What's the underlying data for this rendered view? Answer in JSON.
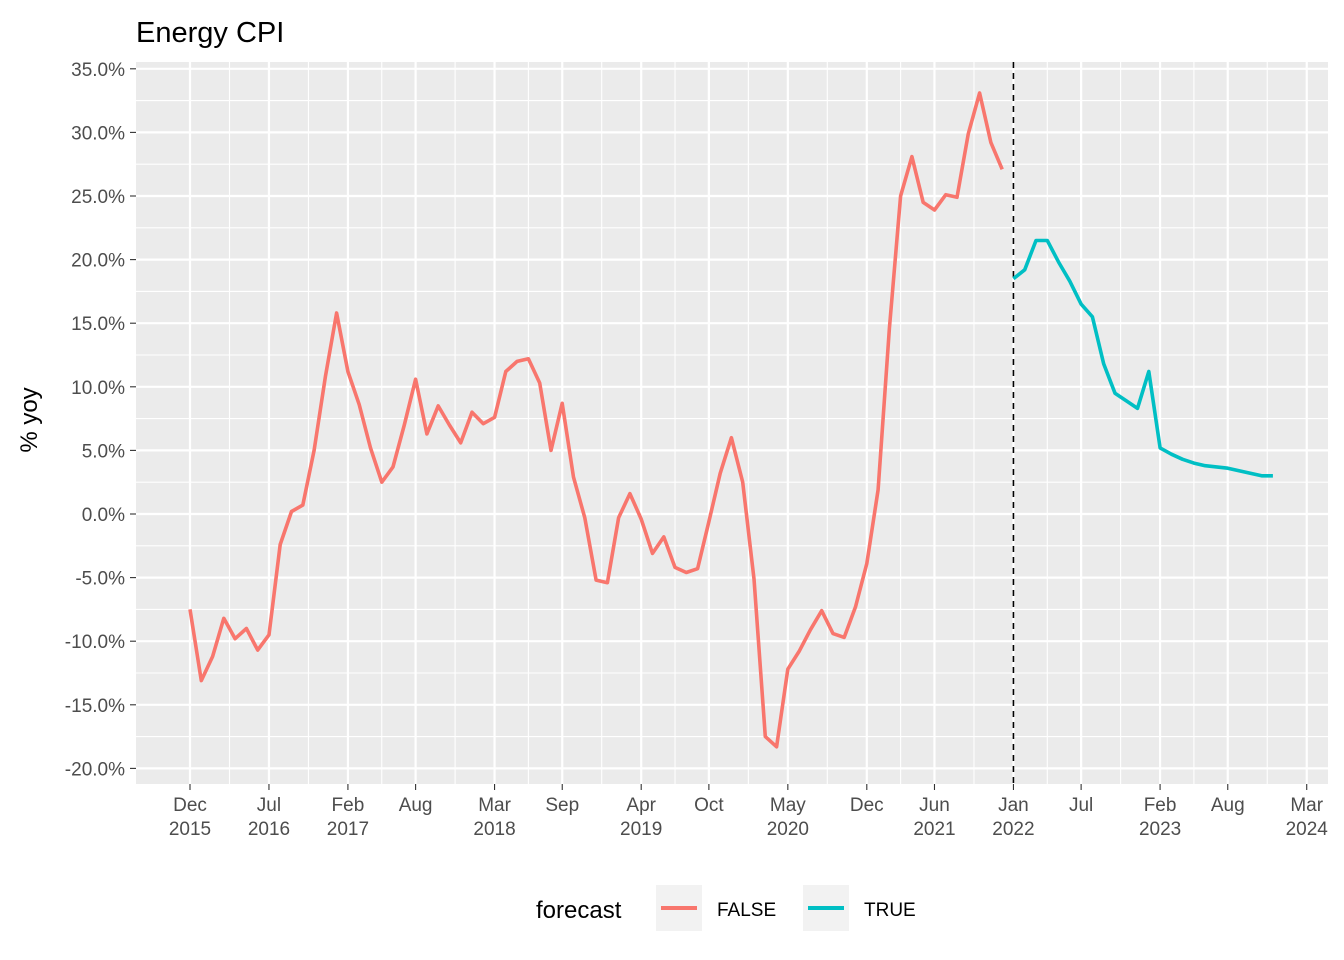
{
  "chart_data": {
    "type": "line",
    "title": "Energy CPI",
    "xlabel": "",
    "ylabel": "% yoy",
    "ylim": [
      -20,
      35
    ],
    "y_tick_values": [
      -20,
      -15,
      -10,
      -5,
      0,
      5,
      10,
      15,
      20,
      25,
      30,
      35
    ],
    "y_tick_labels": [
      "-20.0%",
      "-15.0%",
      "-10.0%",
      "-5.0%",
      "0.0%",
      "5.0%",
      "10.0%",
      "15.0%",
      "20.0%",
      "25.0%",
      "30.0%",
      "35.0%"
    ],
    "x_ticks": [
      {
        "date": "2015-12",
        "label": "Dec",
        "year": "2015"
      },
      {
        "date": "2016-07",
        "label": "Jul",
        "year": "2016"
      },
      {
        "date": "2017-02",
        "label": "Feb",
        "year": "2017"
      },
      {
        "date": "2017-08",
        "label": "Aug",
        "year": ""
      },
      {
        "date": "2018-03",
        "label": "Mar",
        "year": "2018"
      },
      {
        "date": "2018-09",
        "label": "Sep",
        "year": ""
      },
      {
        "date": "2019-04",
        "label": "Apr",
        "year": "2019"
      },
      {
        "date": "2019-10",
        "label": "Oct",
        "year": ""
      },
      {
        "date": "2020-05",
        "label": "May",
        "year": "2020"
      },
      {
        "date": "2020-12",
        "label": "Dec",
        "year": ""
      },
      {
        "date": "2021-06",
        "label": "Jun",
        "year": "2021"
      },
      {
        "date": "2022-01",
        "label": "Jan",
        "year": "2022"
      },
      {
        "date": "2022-07",
        "label": "Jul",
        "year": ""
      },
      {
        "date": "2023-02",
        "label": "Feb",
        "year": "2023"
      },
      {
        "date": "2023-08",
        "label": "Aug",
        "year": ""
      },
      {
        "date": "2024-03",
        "label": "Mar",
        "year": "2024"
      }
    ],
    "vline_date": "2022-01",
    "legend": {
      "title": "forecast",
      "position": "bottom"
    },
    "series": [
      {
        "name": "FALSE",
        "color": "#F8766D",
        "x": [
          "2015-12",
          "2016-01",
          "2016-02",
          "2016-03",
          "2016-04",
          "2016-05",
          "2016-06",
          "2016-07",
          "2016-08",
          "2016-09",
          "2016-10",
          "2016-11",
          "2016-12",
          "2017-01",
          "2017-02",
          "2017-03",
          "2017-04",
          "2017-05",
          "2017-06",
          "2017-07",
          "2017-08",
          "2017-09",
          "2017-10",
          "2017-11",
          "2017-12",
          "2018-01",
          "2018-02",
          "2018-03",
          "2018-04",
          "2018-05",
          "2018-06",
          "2018-07",
          "2018-08",
          "2018-09",
          "2018-10",
          "2018-11",
          "2018-12",
          "2019-01",
          "2019-02",
          "2019-03",
          "2019-04",
          "2019-05",
          "2019-06",
          "2019-07",
          "2019-08",
          "2019-09",
          "2019-10",
          "2019-11",
          "2019-12",
          "2020-01",
          "2020-02",
          "2020-03",
          "2020-04",
          "2020-05",
          "2020-06",
          "2020-07",
          "2020-08",
          "2020-09",
          "2020-10",
          "2020-11",
          "2020-12",
          "2021-01",
          "2021-02",
          "2021-03",
          "2021-04",
          "2021-05",
          "2021-06",
          "2021-07",
          "2021-08",
          "2021-09",
          "2021-10",
          "2021-11",
          "2021-12"
        ],
        "values": [
          -7.5,
          -13.1,
          -11.2,
          -8.2,
          -9.8,
          -9.0,
          -10.7,
          -9.5,
          -2.4,
          0.2,
          0.7,
          5.0,
          10.8,
          15.8,
          11.2,
          8.6,
          5.2,
          2.5,
          3.7,
          7.0,
          10.6,
          6.3,
          8.5,
          7.0,
          5.6,
          8.0,
          7.1,
          7.6,
          11.2,
          12.0,
          12.2,
          10.3,
          5.0,
          8.7,
          2.9,
          -0.3,
          -5.2,
          -5.4,
          -0.3,
          1.6,
          -0.4,
          -3.1,
          -1.8,
          -4.2,
          -4.6,
          -4.3,
          -0.6,
          3.2,
          6.0,
          2.5,
          -5.1,
          -17.5,
          -18.3,
          -12.2,
          -10.8,
          -9.1,
          -7.6,
          -9.4,
          -9.7,
          -7.3,
          -3.9,
          1.9,
          14.6,
          25.0,
          28.1,
          24.5,
          23.9,
          25.1,
          24.9,
          29.9,
          33.1,
          29.2,
          27.1
        ]
      },
      {
        "name": "TRUE",
        "color": "#00BFC4",
        "x": [
          "2022-01",
          "2022-02",
          "2022-03",
          "2022-04",
          "2022-05",
          "2022-06",
          "2022-07",
          "2022-08",
          "2022-09",
          "2022-10",
          "2022-11",
          "2022-12",
          "2023-01",
          "2023-02",
          "2023-03",
          "2023-04",
          "2023-05",
          "2023-06",
          "2023-07",
          "2023-08",
          "2023-09",
          "2023-10",
          "2023-11",
          "2023-12"
        ],
        "values": [
          18.5,
          19.2,
          21.5,
          21.5,
          19.8,
          18.3,
          16.5,
          15.5,
          11.8,
          9.5,
          8.9,
          8.3,
          11.2,
          5.2,
          4.7,
          4.3,
          4.0,
          3.8,
          3.7,
          3.6,
          3.4,
          3.2,
          3.0,
          3.0
        ]
      }
    ]
  }
}
